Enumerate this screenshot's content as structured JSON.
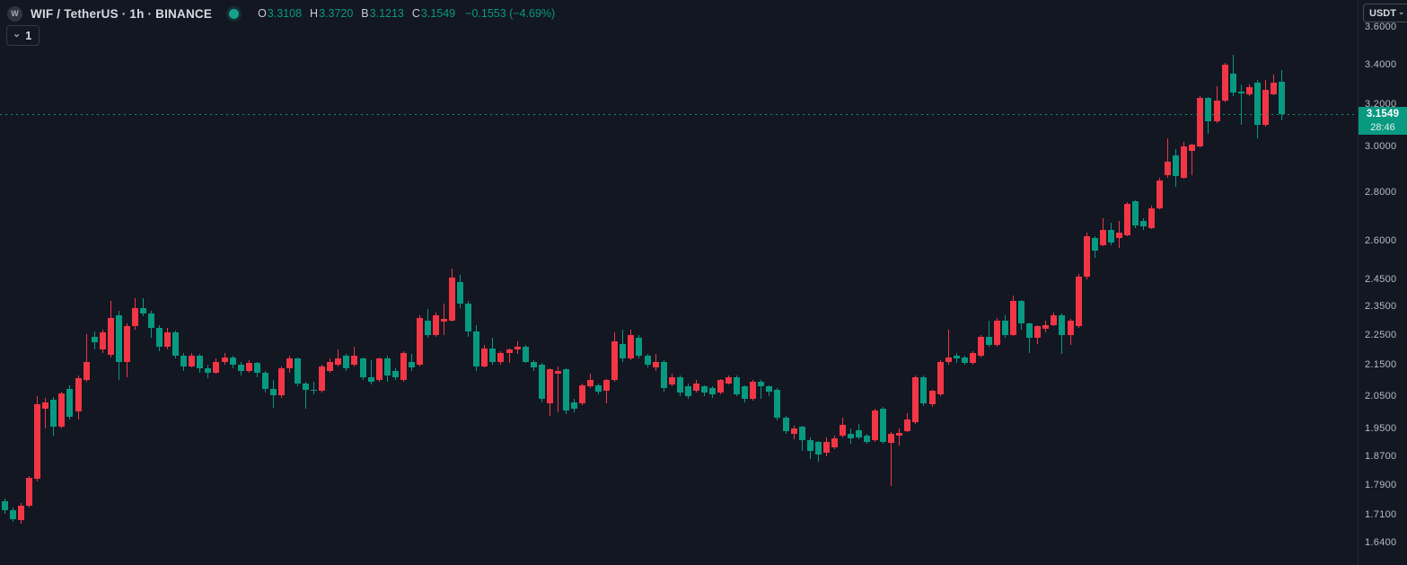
{
  "header": {
    "logo_letter": "W",
    "symbol_title": "WIF / TetherUS · 1h · BINANCE",
    "ohlc": {
      "open_label": "O",
      "open": "3.3108",
      "high_label": "H",
      "high": "3.3720",
      "low_label": "B",
      "low": "3.1213",
      "close_label": "C",
      "close": "3.1549",
      "change": "−0.1553 (−4.69%)"
    }
  },
  "toolbar": {
    "interval_value": "1",
    "chevron": "⌄"
  },
  "price_axis": {
    "currency_button": "USDT",
    "chevron": "⌄",
    "labels": [
      "3.6000",
      "3.4000",
      "3.2000",
      "3.0000",
      "2.8000",
      "2.6000",
      "2.4500",
      "2.3500",
      "2.2500",
      "2.1500",
      "2.0500",
      "1.9500",
      "1.8700",
      "1.7900",
      "1.7100",
      "1.6400"
    ],
    "last_price": "3.1549",
    "countdown": "28:46"
  },
  "colors": {
    "up": "#f23645",
    "down": "#089981",
    "background": "#131722",
    "accent_green": "#089981",
    "axis_text": "#b7bbc4",
    "title_text": "#d6dae2",
    "border": "#232836"
  },
  "chart_data": {
    "type": "candlestick",
    "title": "WIF / TetherUS · 1h · BINANCE",
    "interval": "1h",
    "price_scale_type": "log",
    "color_convention": "red = up candle, green = down candle (inverted theme)",
    "y_axis_ticks": [
      3.6,
      3.4,
      3.2,
      3.0,
      2.8,
      2.6,
      2.45,
      2.35,
      2.25,
      2.15,
      2.05,
      1.95,
      1.87,
      1.79,
      1.71,
      1.64
    ],
    "last_price": 3.1549,
    "last_candle_ohlc": {
      "open": 3.3108,
      "high": 3.372,
      "low": 3.1213,
      "close": 3.1549
    },
    "change": -0.1553,
    "change_pct": -4.69,
    "countdown": "28:46",
    "ohlc_order": "[open, high, low, close]",
    "candles": [
      [
        1.746,
        1.752,
        1.712,
        1.722
      ],
      [
        1.722,
        1.73,
        1.692,
        1.698
      ],
      [
        1.696,
        1.74,
        1.687,
        1.733
      ],
      [
        1.733,
        1.815,
        1.728,
        1.809
      ],
      [
        1.806,
        2.05,
        1.8,
        2.024
      ],
      [
        2.01,
        2.045,
        1.95,
        2.03
      ],
      [
        2.038,
        2.048,
        1.929,
        1.955
      ],
      [
        1.955,
        2.065,
        1.95,
        2.057
      ],
      [
        2.073,
        2.085,
        1.977,
        1.987
      ],
      [
        2.001,
        2.115,
        1.977,
        2.107
      ],
      [
        2.1,
        2.254,
        2.095,
        2.16
      ],
      [
        2.245,
        2.262,
        2.2,
        2.225
      ],
      [
        2.2,
        2.27,
        2.19,
        2.26
      ],
      [
        2.183,
        2.37,
        2.175,
        2.31
      ],
      [
        2.32,
        2.335,
        2.1,
        2.16
      ],
      [
        2.16,
        2.29,
        2.11,
        2.28
      ],
      [
        2.28,
        2.38,
        2.27,
        2.345
      ],
      [
        2.345,
        2.38,
        2.315,
        2.325
      ],
      [
        2.325,
        2.335,
        2.24,
        2.275
      ],
      [
        2.275,
        2.285,
        2.195,
        2.21
      ],
      [
        2.21,
        2.275,
        2.2,
        2.26
      ],
      [
        2.26,
        2.265,
        2.17,
        2.18
      ],
      [
        2.18,
        2.19,
        2.13,
        2.145
      ],
      [
        2.145,
        2.19,
        2.14,
        2.18
      ],
      [
        2.18,
        2.185,
        2.125,
        2.14
      ],
      [
        2.14,
        2.15,
        2.105,
        2.125
      ],
      [
        2.125,
        2.17,
        2.12,
        2.16
      ],
      [
        2.16,
        2.19,
        2.15,
        2.175
      ],
      [
        2.175,
        2.18,
        2.14,
        2.15
      ],
      [
        2.15,
        2.16,
        2.115,
        2.13
      ],
      [
        2.13,
        2.165,
        2.125,
        2.155
      ],
      [
        2.155,
        2.16,
        2.11,
        2.125
      ],
      [
        2.125,
        2.13,
        2.06,
        2.072
      ],
      [
        2.072,
        2.1,
        2.012,
        2.052
      ],
      [
        2.052,
        2.145,
        2.045,
        2.139
      ],
      [
        2.139,
        2.18,
        2.125,
        2.17
      ],
      [
        2.17,
        2.175,
        2.08,
        2.09
      ],
      [
        2.09,
        2.095,
        2.012,
        2.07
      ],
      [
        2.07,
        2.095,
        2.055,
        2.066
      ],
      [
        2.066,
        2.15,
        2.06,
        2.145
      ],
      [
        2.13,
        2.17,
        2.125,
        2.16
      ],
      [
        2.15,
        2.2,
        2.145,
        2.17
      ],
      [
        2.18,
        2.185,
        2.13,
        2.14
      ],
      [
        2.15,
        2.21,
        2.145,
        2.18
      ],
      [
        2.17,
        2.175,
        2.1,
        2.11
      ],
      [
        2.11,
        2.165,
        2.085,
        2.095
      ],
      [
        2.1,
        2.175,
        2.095,
        2.17
      ],
      [
        2.17,
        2.18,
        2.095,
        2.115
      ],
      [
        2.13,
        2.14,
        2.1,
        2.11
      ],
      [
        2.1,
        2.195,
        2.095,
        2.19
      ],
      [
        2.16,
        2.185,
        2.13,
        2.14
      ],
      [
        2.15,
        2.32,
        2.145,
        2.31
      ],
      [
        2.3,
        2.34,
        2.24,
        2.25
      ],
      [
        2.25,
        2.33,
        2.245,
        2.32
      ],
      [
        2.295,
        2.36,
        2.25,
        2.305
      ],
      [
        2.3,
        2.49,
        2.295,
        2.455
      ],
      [
        2.44,
        2.465,
        2.345,
        2.36
      ],
      [
        2.36,
        2.37,
        2.245,
        2.262
      ],
      [
        2.262,
        2.285,
        2.13,
        2.145
      ],
      [
        2.145,
        2.215,
        2.14,
        2.205
      ],
      [
        2.205,
        2.24,
        2.15,
        2.16
      ],
      [
        2.16,
        2.195,
        2.15,
        2.19
      ],
      [
        2.19,
        2.205,
        2.155,
        2.2
      ],
      [
        2.2,
        2.23,
        2.185,
        2.21
      ],
      [
        2.21,
        2.215,
        2.155,
        2.16
      ],
      [
        2.16,
        2.165,
        2.13,
        2.14
      ],
      [
        2.15,
        2.155,
        2.03,
        2.04
      ],
      [
        2.027,
        2.14,
        1.99,
        2.135
      ],
      [
        2.12,
        2.145,
        2.0,
        2.13
      ],
      [
        2.135,
        2.14,
        1.995,
        2.005
      ],
      [
        2.03,
        2.04,
        2.0,
        2.01
      ],
      [
        2.027,
        2.09,
        2.02,
        2.085
      ],
      [
        2.08,
        2.12,
        2.075,
        2.1
      ],
      [
        2.085,
        2.09,
        2.055,
        2.065
      ],
      [
        2.065,
        2.105,
        2.028,
        2.1
      ],
      [
        2.1,
        2.26,
        2.095,
        2.23
      ],
      [
        2.22,
        2.27,
        2.16,
        2.17
      ],
      [
        2.17,
        2.27,
        2.165,
        2.25
      ],
      [
        2.24,
        2.25,
        2.17,
        2.18
      ],
      [
        2.18,
        2.185,
        2.14,
        2.15
      ],
      [
        2.14,
        2.185,
        2.13,
        2.16
      ],
      [
        2.16,
        2.165,
        2.065,
        2.075
      ],
      [
        2.085,
        2.12,
        2.08,
        2.11
      ],
      [
        2.11,
        2.115,
        2.05,
        2.06
      ],
      [
        2.08,
        2.09,
        2.04,
        2.05
      ],
      [
        2.065,
        2.1,
        2.06,
        2.09
      ],
      [
        2.08,
        2.085,
        2.05,
        2.06
      ],
      [
        2.075,
        2.08,
        2.045,
        2.055
      ],
      [
        2.06,
        2.105,
        2.055,
        2.1
      ],
      [
        2.09,
        2.115,
        2.085,
        2.11
      ],
      [
        2.11,
        2.115,
        2.05,
        2.055
      ],
      [
        2.08,
        2.085,
        2.03,
        2.04
      ],
      [
        2.04,
        2.1,
        2.035,
        2.095
      ],
      [
        2.095,
        2.1,
        2.04,
        2.08
      ],
      [
        2.08,
        2.085,
        2.05,
        2.062
      ],
      [
        2.07,
        2.075,
        1.975,
        1.983
      ],
      [
        1.983,
        1.99,
        1.935,
        1.943
      ],
      [
        1.934,
        1.96,
        1.92,
        1.95
      ],
      [
        1.956,
        1.96,
        1.886,
        1.917
      ],
      [
        1.917,
        1.925,
        1.862,
        1.886
      ],
      [
        1.91,
        1.915,
        1.855,
        1.874
      ],
      [
        1.88,
        1.925,
        1.87,
        1.91
      ],
      [
        1.896,
        1.93,
        1.89,
        1.922
      ],
      [
        1.93,
        1.984,
        1.925,
        1.962
      ],
      [
        1.935,
        1.95,
        1.905,
        1.922
      ],
      [
        1.945,
        1.965,
        1.92,
        1.925
      ],
      [
        1.93,
        1.935,
        1.905,
        1.912
      ],
      [
        1.917,
        2.01,
        1.91,
        2.005
      ],
      [
        2.01,
        2.015,
        1.905,
        1.912
      ],
      [
        1.909,
        1.94,
        1.786,
        1.935
      ],
      [
        1.93,
        1.95,
        1.9,
        1.937
      ],
      [
        1.943,
        1.997,
        1.94,
        1.978
      ],
      [
        1.97,
        2.116,
        1.965,
        2.11
      ],
      [
        2.11,
        2.115,
        2.02,
        2.027
      ],
      [
        2.024,
        2.07,
        2.015,
        2.066
      ],
      [
        2.055,
        2.165,
        2.05,
        2.16
      ],
      [
        2.16,
        2.268,
        2.15,
        2.175
      ],
      [
        2.18,
        2.19,
        2.155,
        2.17
      ],
      [
        2.175,
        2.18,
        2.15,
        2.155
      ],
      [
        2.155,
        2.195,
        2.15,
        2.19
      ],
      [
        2.18,
        2.25,
        2.175,
        2.245
      ],
      [
        2.245,
        2.3,
        2.21,
        2.215
      ],
      [
        2.215,
        2.31,
        2.21,
        2.3
      ],
      [
        2.3,
        2.32,
        2.24,
        2.25
      ],
      [
        2.25,
        2.39,
        2.245,
        2.37
      ],
      [
        2.37,
        2.375,
        2.27,
        2.29
      ],
      [
        2.29,
        2.295,
        2.19,
        2.24
      ],
      [
        2.24,
        2.285,
        2.22,
        2.28
      ],
      [
        2.27,
        2.3,
        2.26,
        2.285
      ],
      [
        2.285,
        2.33,
        2.28,
        2.32
      ],
      [
        2.32,
        2.325,
        2.185,
        2.25
      ],
      [
        2.25,
        2.305,
        2.215,
        2.3
      ],
      [
        2.28,
        2.47,
        2.275,
        2.46
      ],
      [
        2.46,
        2.63,
        2.45,
        2.616
      ],
      [
        2.61,
        2.615,
        2.53,
        2.56
      ],
      [
        2.58,
        2.69,
        2.575,
        2.64
      ],
      [
        2.64,
        2.67,
        2.58,
        2.59
      ],
      [
        2.61,
        2.68,
        2.57,
        2.63
      ],
      [
        2.62,
        2.755,
        2.615,
        2.75
      ],
      [
        2.76,
        2.765,
        2.65,
        2.66
      ],
      [
        2.68,
        2.69,
        2.64,
        2.655
      ],
      [
        2.65,
        2.74,
        2.645,
        2.73
      ],
      [
        2.73,
        2.86,
        2.725,
        2.85
      ],
      [
        2.87,
        3.04,
        2.86,
        2.93
      ],
      [
        2.96,
        2.99,
        2.82,
        2.87
      ],
      [
        2.86,
        3.02,
        2.855,
        3.0
      ],
      [
        2.98,
        3.015,
        2.87,
        3.01
      ],
      [
        3.0,
        3.24,
        2.995,
        3.23
      ],
      [
        3.23,
        3.235,
        3.06,
        3.12
      ],
      [
        3.12,
        3.29,
        3.11,
        3.22
      ],
      [
        3.22,
        3.41,
        3.21,
        3.4
      ],
      [
        3.355,
        3.45,
        3.24,
        3.26
      ],
      [
        3.265,
        3.3,
        3.1,
        3.255
      ],
      [
        3.25,
        3.3,
        3.24,
        3.285
      ],
      [
        3.31,
        3.32,
        3.04,
        3.1
      ],
      [
        3.1,
        3.32,
        3.095,
        3.27
      ],
      [
        3.25,
        3.35,
        3.245,
        3.31
      ],
      [
        3.3108,
        3.372,
        3.1213,
        3.1549
      ]
    ]
  }
}
